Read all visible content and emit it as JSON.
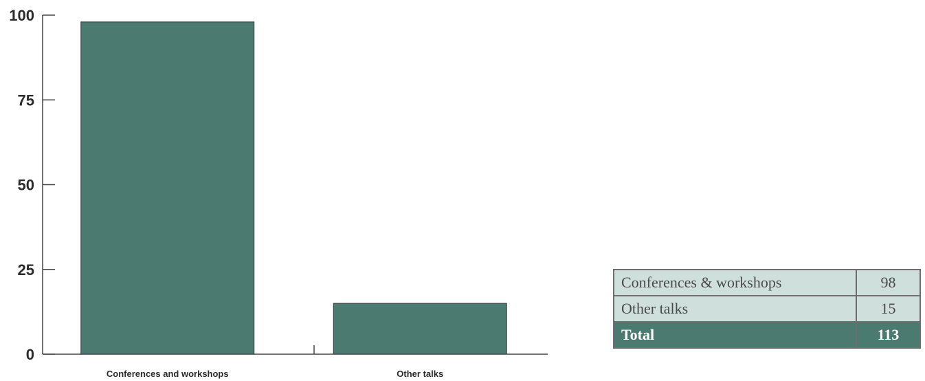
{
  "chart_data": {
    "type": "bar",
    "categories": [
      "Conferences and workshops",
      "Other talks"
    ],
    "values": [
      98,
      15
    ],
    "ylim": [
      0,
      100
    ],
    "yticks": [
      0,
      25,
      50,
      75,
      100
    ],
    "bar_color": "#4a7a70",
    "grid": false
  },
  "summary_table": {
    "rows": [
      {
        "label": "Conferences & workshops",
        "value": "98"
      },
      {
        "label": "Other talks",
        "value": "15"
      }
    ],
    "total": {
      "label": "Total",
      "value": "113"
    },
    "row_color": "#cfdfdc",
    "total_color": "#4a7a70"
  }
}
